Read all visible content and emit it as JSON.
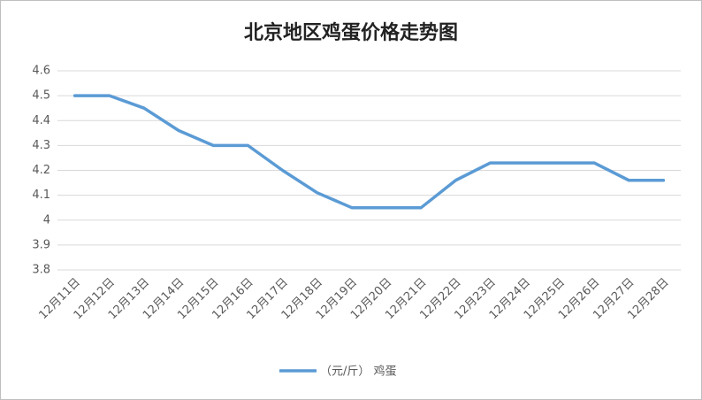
{
  "chart_data": {
    "type": "line",
    "title": "北京地区鸡蛋价格走势图",
    "categories": [
      "12月11日",
      "12月12日",
      "12月13日",
      "12月14日",
      "12月15日",
      "12月16日",
      "12月17日",
      "12月18日",
      "12月19日",
      "12月20日",
      "12月21日",
      "12月22日",
      "12月23日",
      "12月24日",
      "12月25日",
      "12月26日",
      "12月27日",
      "12月28日"
    ],
    "series": [
      {
        "name": "（元/斤） 鸡蛋",
        "color": "#5b9bd5",
        "values": [
          4.5,
          4.5,
          4.45,
          4.36,
          4.3,
          4.3,
          4.2,
          4.11,
          4.05,
          4.05,
          4.05,
          4.16,
          4.23,
          4.23,
          4.23,
          4.23,
          4.16,
          4.16
        ]
      }
    ],
    "ylim": [
      3.8,
      4.6
    ],
    "yticks": [
      3.8,
      3.9,
      4,
      4.1,
      4.2,
      4.3,
      4.4,
      4.5,
      4.6
    ],
    "grid": true,
    "legend": "bottom"
  }
}
